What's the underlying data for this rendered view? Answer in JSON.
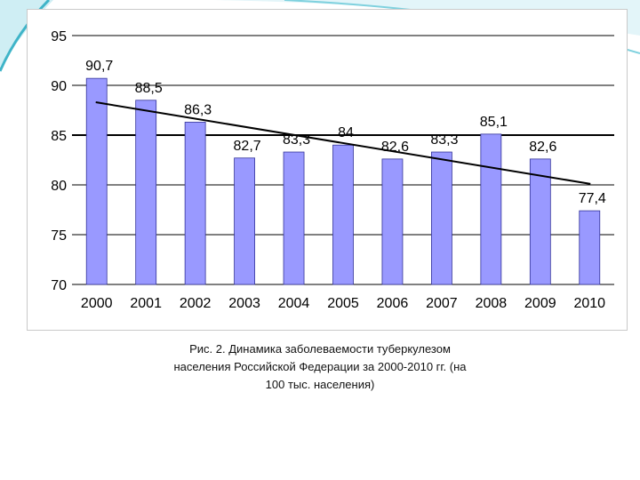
{
  "slide": {
    "caption_lines": [
      "Рис. 2. Динамика заболеваемости туберкулезом",
      "населения Российской Федерации за 2000-2010 гг. (на",
      "100 тыс. населения)"
    ]
  },
  "colors": {
    "bar_fill": "#9999ff",
    "bar_stroke": "#333399",
    "trend_line": "#000000",
    "gridline": "#000000",
    "accent": "#3fb4c8"
  },
  "chart_data": {
    "type": "bar",
    "title": "",
    "xlabel": "",
    "ylabel": "",
    "categories": [
      "2000",
      "2001",
      "2002",
      "2003",
      "2004",
      "2005",
      "2006",
      "2007",
      "2008",
      "2009",
      "2010"
    ],
    "values": [
      90.7,
      88.5,
      86.3,
      82.7,
      83.3,
      84,
      82.6,
      83.3,
      85.1,
      82.6,
      77.4
    ],
    "data_labels": [
      "90,7",
      "88,5",
      "86,3",
      "82,7",
      "83,3",
      "84",
      "82,6",
      "83,3",
      "85,1",
      "82,6",
      "77,4"
    ],
    "ylim": [
      70,
      95
    ],
    "yticks": [
      70,
      75,
      80,
      85,
      90,
      95
    ],
    "grid": true,
    "trendline": {
      "type": "linear",
      "start": 88.3,
      "end": 80.1
    }
  }
}
